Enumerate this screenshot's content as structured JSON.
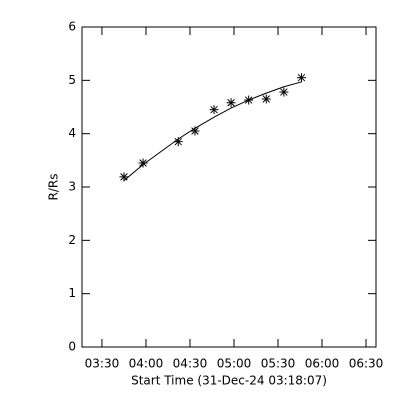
{
  "chart_data": {
    "type": "scatter",
    "xlabel": "Start Time (31-Dec-24 03:18:07)",
    "ylabel": "R/Rs",
    "x": [
      225,
      238,
      262,
      273.4,
      286.4,
      298,
      310,
      322,
      334,
      346
    ],
    "series": [
      {
        "marker": "asterisk",
        "color": "#000000",
        "values": [
          3.19,
          3.45,
          3.85,
          4.05,
          4.45,
          4.58,
          4.63,
          4.65,
          4.78,
          5.05
        ]
      },
      {
        "style": "line",
        "color": "#000000",
        "values": [
          3.12,
          3.42,
          3.9,
          4.1,
          4.31,
          4.48,
          4.63,
          4.76,
          4.88,
          4.97
        ]
      }
    ],
    "xlim": [
      196.4,
      396.8
    ],
    "ylim": [
      0,
      6
    ],
    "xticks": [
      {
        "value": 210,
        "label": "03:30"
      },
      {
        "value": 240,
        "label": "04:00"
      },
      {
        "value": 270,
        "label": "04:30"
      },
      {
        "value": 300,
        "label": "05:00"
      },
      {
        "value": 330,
        "label": "05:30"
      },
      {
        "value": 360,
        "label": "06:00"
      },
      {
        "value": 390,
        "label": "06:30"
      }
    ],
    "yticks": [
      0,
      1,
      2,
      3,
      4,
      5,
      6
    ]
  }
}
